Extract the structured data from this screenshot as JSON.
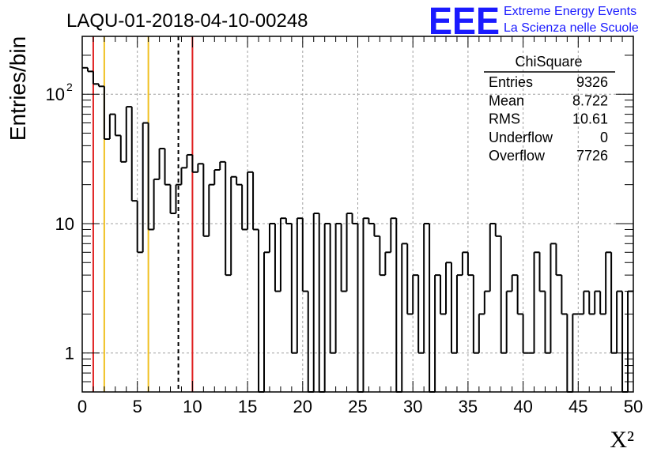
{
  "page": {
    "run_title": "LAQU-01-2018-04-10-00248",
    "logo": {
      "letters": "EEE",
      "line1": "Extreme Energy Events",
      "line2": "La Scienza nelle Scuole",
      "color": "#1a1aff"
    }
  },
  "stats": {
    "title": "ChiSquare",
    "rows": [
      {
        "label": "Entries",
        "value": "9326"
      },
      {
        "label": "Mean",
        "value": "8.722"
      },
      {
        "label": "RMS",
        "value": "10.61"
      },
      {
        "label": "Underflow",
        "value": "0"
      },
      {
        "label": "Overflow",
        "value": "7726"
      }
    ]
  },
  "chart_data": {
    "type": "histogram-step",
    "title": "LAQU-01-2018-04-10-00248",
    "xlabel": "X²",
    "ylabel": "Entries/bin",
    "xlim": [
      0,
      50
    ],
    "ylim": [
      0.5,
      280
    ],
    "yscale": "log",
    "grid": true,
    "bin_width": 0.5,
    "x_ticks": [
      "0",
      "5",
      "10",
      "15",
      "20",
      "25",
      "30",
      "35",
      "40",
      "45",
      "50"
    ],
    "y_ticks": [
      {
        "value": 1,
        "label": "1"
      },
      {
        "value": 10,
        "label": "10"
      },
      {
        "value": 100,
        "label": "10",
        "exp": "2"
      }
    ],
    "values": [
      160,
      150,
      120,
      115,
      45,
      70,
      48,
      30,
      80,
      15,
      6,
      60,
      9,
      22,
      38,
      20,
      12,
      20,
      27,
      34,
      25,
      29,
      8,
      20,
      26,
      30,
      4,
      23,
      20,
      9,
      25,
      9,
      0,
      6,
      10,
      3,
      11,
      10,
      1,
      11,
      3,
      0,
      12,
      0.5,
      10,
      1,
      10,
      3,
      12,
      10,
      0.5,
      11,
      10,
      8,
      4,
      6,
      11,
      0.5,
      7,
      2,
      4,
      1,
      10,
      0.5,
      4,
      2,
      5,
      1,
      4,
      6,
      4,
      1,
      2,
      3,
      10,
      8,
      1,
      3,
      4,
      2,
      1,
      1,
      6,
      3,
      1,
      7,
      4,
      2,
      0.5,
      2,
      2,
      3,
      2,
      3,
      2,
      6,
      1,
      3,
      0,
      3
    ],
    "vertical_lines": [
      {
        "x": 1.0,
        "color": "#e02020",
        "style": "solid"
      },
      {
        "x": 2.0,
        "color": "#f0c020",
        "style": "solid"
      },
      {
        "x": 6.0,
        "color": "#f0c020",
        "style": "solid"
      },
      {
        "x": 8.722,
        "color": "#000000",
        "style": "dashed"
      },
      {
        "x": 10.0,
        "color": "#e02020",
        "style": "solid"
      }
    ]
  }
}
